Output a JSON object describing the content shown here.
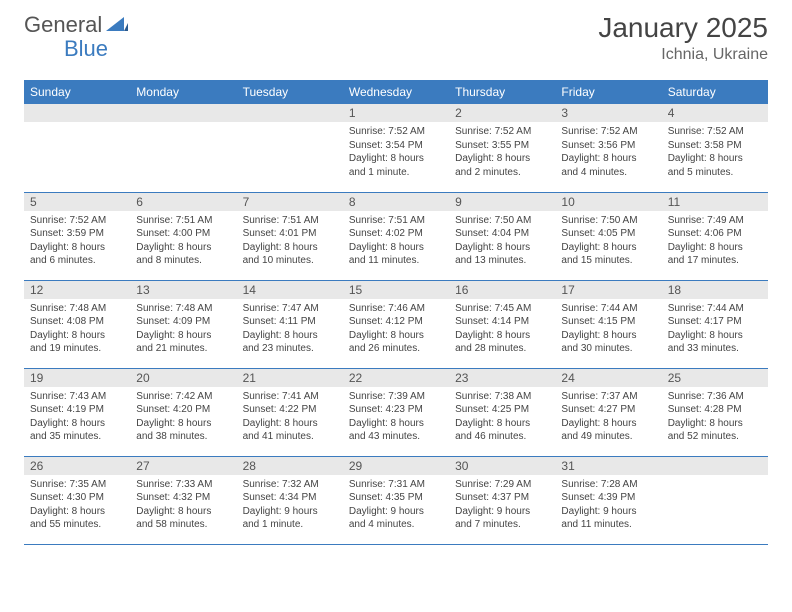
{
  "logo": {
    "text1": "General",
    "text2": "Blue",
    "icon_color": "#3b7bbf"
  },
  "header": {
    "title": "January 2025",
    "location": "Ichnia, Ukraine"
  },
  "colors": {
    "header_bg": "#3b7bbf",
    "daynum_bg": "#e8e8e8",
    "text": "#444444"
  },
  "weekdays": [
    "Sunday",
    "Monday",
    "Tuesday",
    "Wednesday",
    "Thursday",
    "Friday",
    "Saturday"
  ],
  "weeks": [
    [
      {
        "day": "",
        "sunrise": "",
        "sunset": "",
        "daylight": ""
      },
      {
        "day": "",
        "sunrise": "",
        "sunset": "",
        "daylight": ""
      },
      {
        "day": "",
        "sunrise": "",
        "sunset": "",
        "daylight": ""
      },
      {
        "day": "1",
        "sunrise": "Sunrise: 7:52 AM",
        "sunset": "Sunset: 3:54 PM",
        "daylight": "Daylight: 8 hours and 1 minute."
      },
      {
        "day": "2",
        "sunrise": "Sunrise: 7:52 AM",
        "sunset": "Sunset: 3:55 PM",
        "daylight": "Daylight: 8 hours and 2 minutes."
      },
      {
        "day": "3",
        "sunrise": "Sunrise: 7:52 AM",
        "sunset": "Sunset: 3:56 PM",
        "daylight": "Daylight: 8 hours and 4 minutes."
      },
      {
        "day": "4",
        "sunrise": "Sunrise: 7:52 AM",
        "sunset": "Sunset: 3:58 PM",
        "daylight": "Daylight: 8 hours and 5 minutes."
      }
    ],
    [
      {
        "day": "5",
        "sunrise": "Sunrise: 7:52 AM",
        "sunset": "Sunset: 3:59 PM",
        "daylight": "Daylight: 8 hours and 6 minutes."
      },
      {
        "day": "6",
        "sunrise": "Sunrise: 7:51 AM",
        "sunset": "Sunset: 4:00 PM",
        "daylight": "Daylight: 8 hours and 8 minutes."
      },
      {
        "day": "7",
        "sunrise": "Sunrise: 7:51 AM",
        "sunset": "Sunset: 4:01 PM",
        "daylight": "Daylight: 8 hours and 10 minutes."
      },
      {
        "day": "8",
        "sunrise": "Sunrise: 7:51 AM",
        "sunset": "Sunset: 4:02 PM",
        "daylight": "Daylight: 8 hours and 11 minutes."
      },
      {
        "day": "9",
        "sunrise": "Sunrise: 7:50 AM",
        "sunset": "Sunset: 4:04 PM",
        "daylight": "Daylight: 8 hours and 13 minutes."
      },
      {
        "day": "10",
        "sunrise": "Sunrise: 7:50 AM",
        "sunset": "Sunset: 4:05 PM",
        "daylight": "Daylight: 8 hours and 15 minutes."
      },
      {
        "day": "11",
        "sunrise": "Sunrise: 7:49 AM",
        "sunset": "Sunset: 4:06 PM",
        "daylight": "Daylight: 8 hours and 17 minutes."
      }
    ],
    [
      {
        "day": "12",
        "sunrise": "Sunrise: 7:48 AM",
        "sunset": "Sunset: 4:08 PM",
        "daylight": "Daylight: 8 hours and 19 minutes."
      },
      {
        "day": "13",
        "sunrise": "Sunrise: 7:48 AM",
        "sunset": "Sunset: 4:09 PM",
        "daylight": "Daylight: 8 hours and 21 minutes."
      },
      {
        "day": "14",
        "sunrise": "Sunrise: 7:47 AM",
        "sunset": "Sunset: 4:11 PM",
        "daylight": "Daylight: 8 hours and 23 minutes."
      },
      {
        "day": "15",
        "sunrise": "Sunrise: 7:46 AM",
        "sunset": "Sunset: 4:12 PM",
        "daylight": "Daylight: 8 hours and 26 minutes."
      },
      {
        "day": "16",
        "sunrise": "Sunrise: 7:45 AM",
        "sunset": "Sunset: 4:14 PM",
        "daylight": "Daylight: 8 hours and 28 minutes."
      },
      {
        "day": "17",
        "sunrise": "Sunrise: 7:44 AM",
        "sunset": "Sunset: 4:15 PM",
        "daylight": "Daylight: 8 hours and 30 minutes."
      },
      {
        "day": "18",
        "sunrise": "Sunrise: 7:44 AM",
        "sunset": "Sunset: 4:17 PM",
        "daylight": "Daylight: 8 hours and 33 minutes."
      }
    ],
    [
      {
        "day": "19",
        "sunrise": "Sunrise: 7:43 AM",
        "sunset": "Sunset: 4:19 PM",
        "daylight": "Daylight: 8 hours and 35 minutes."
      },
      {
        "day": "20",
        "sunrise": "Sunrise: 7:42 AM",
        "sunset": "Sunset: 4:20 PM",
        "daylight": "Daylight: 8 hours and 38 minutes."
      },
      {
        "day": "21",
        "sunrise": "Sunrise: 7:41 AM",
        "sunset": "Sunset: 4:22 PM",
        "daylight": "Daylight: 8 hours and 41 minutes."
      },
      {
        "day": "22",
        "sunrise": "Sunrise: 7:39 AM",
        "sunset": "Sunset: 4:23 PM",
        "daylight": "Daylight: 8 hours and 43 minutes."
      },
      {
        "day": "23",
        "sunrise": "Sunrise: 7:38 AM",
        "sunset": "Sunset: 4:25 PM",
        "daylight": "Daylight: 8 hours and 46 minutes."
      },
      {
        "day": "24",
        "sunrise": "Sunrise: 7:37 AM",
        "sunset": "Sunset: 4:27 PM",
        "daylight": "Daylight: 8 hours and 49 minutes."
      },
      {
        "day": "25",
        "sunrise": "Sunrise: 7:36 AM",
        "sunset": "Sunset: 4:28 PM",
        "daylight": "Daylight: 8 hours and 52 minutes."
      }
    ],
    [
      {
        "day": "26",
        "sunrise": "Sunrise: 7:35 AM",
        "sunset": "Sunset: 4:30 PM",
        "daylight": "Daylight: 8 hours and 55 minutes."
      },
      {
        "day": "27",
        "sunrise": "Sunrise: 7:33 AM",
        "sunset": "Sunset: 4:32 PM",
        "daylight": "Daylight: 8 hours and 58 minutes."
      },
      {
        "day": "28",
        "sunrise": "Sunrise: 7:32 AM",
        "sunset": "Sunset: 4:34 PM",
        "daylight": "Daylight: 9 hours and 1 minute."
      },
      {
        "day": "29",
        "sunrise": "Sunrise: 7:31 AM",
        "sunset": "Sunset: 4:35 PM",
        "daylight": "Daylight: 9 hours and 4 minutes."
      },
      {
        "day": "30",
        "sunrise": "Sunrise: 7:29 AM",
        "sunset": "Sunset: 4:37 PM",
        "daylight": "Daylight: 9 hours and 7 minutes."
      },
      {
        "day": "31",
        "sunrise": "Sunrise: 7:28 AM",
        "sunset": "Sunset: 4:39 PM",
        "daylight": "Daylight: 9 hours and 11 minutes."
      },
      {
        "day": "",
        "sunrise": "",
        "sunset": "",
        "daylight": ""
      }
    ]
  ]
}
